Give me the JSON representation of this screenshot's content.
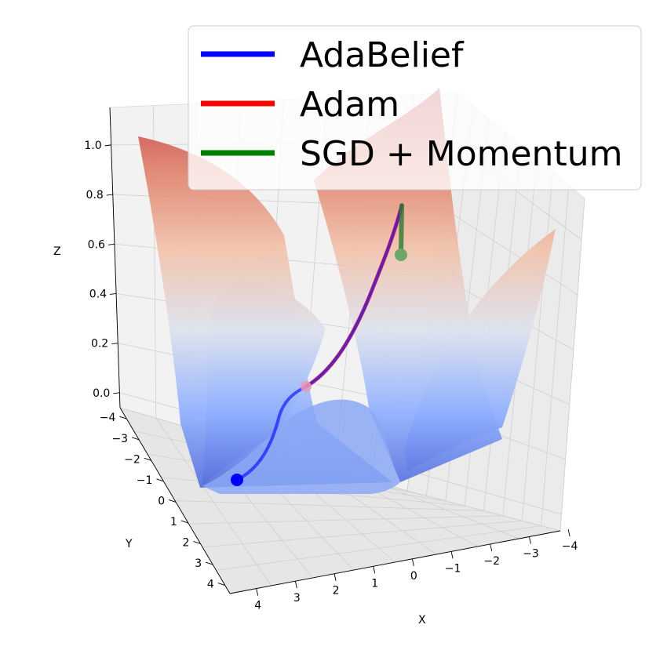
{
  "chart_data": {
    "type": "surface3d",
    "title": "",
    "xlabel": "X",
    "ylabel": "Y",
    "zlabel": "Z",
    "x_ticks": [
      "4",
      "3",
      "2",
      "1",
      "0",
      "−1",
      "−2",
      "−3",
      "−4"
    ],
    "y_ticks": [
      "−4",
      "−3",
      "−2",
      "−1",
      "0",
      "1",
      "2",
      "3",
      "4"
    ],
    "z_ticks": [
      "0.0",
      "0.2",
      "0.4",
      "0.6",
      "0.8",
      "1.0"
    ],
    "xlim": [
      -4,
      4
    ],
    "ylim": [
      -4,
      4
    ],
    "zlim": [
      0,
      1.1
    ],
    "grid": true,
    "legend_position": "top-right",
    "colormap": "coolwarm",
    "series": [
      {
        "name": "AdaBelief",
        "color": "#0000ff",
        "z": [
          0.83,
          0.74,
          0.64,
          0.54,
          0.45,
          0.36,
          0.29,
          0.22,
          0.16,
          0.11,
          0.07,
          0.04,
          0.03,
          0.02,
          0.02
        ],
        "endpoint": "final"
      },
      {
        "name": "Adam",
        "color": "#ff0000",
        "z": [
          0.83,
          0.74,
          0.64,
          0.54,
          0.45,
          0.36,
          0.29,
          0.22,
          0.16,
          0.11
        ],
        "endpoint": "final"
      },
      {
        "name": "SGD + Momentum",
        "color": "#008000",
        "z": [
          0.83,
          0.78,
          0.74,
          0.71,
          0.69
        ],
        "endpoint": "final"
      }
    ]
  }
}
